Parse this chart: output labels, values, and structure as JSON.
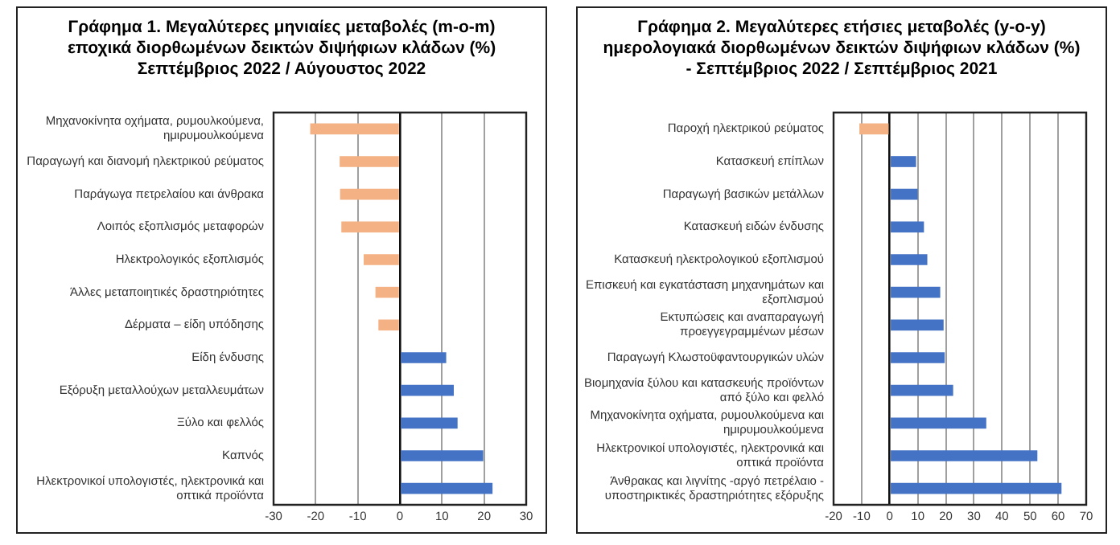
{
  "chart_data": [
    {
      "type": "bar",
      "orientation": "horizontal",
      "title": "Γράφημα 1. Μεγαλύτερες μηνιαίες μεταβολές (m-o-m) εποχικά διορθωμένων δεικτών διψήφιων κλάδων (%) Σεπτέμβριος 2022 / Αύγουστος 2022",
      "categories": [
        "Μηχανοκίνητα οχήματα, ρυμουλκούμενα, ημιρυμουλκούμενα",
        "Παραγωγή και διανομή ηλεκτρικού ρεύματος",
        "Παράγωγα πετρελαίου και άνθρακα",
        "Λοιπός εξοπλισμός μεταφορών",
        "Ηλεκτρολογικός εξοπλισμός",
        "Άλλες μεταποιητικές δραστηριότητες",
        "Δέρματα – είδη υπόδησης",
        "Είδη ένδυσης",
        "Εξόρυξη μεταλλούχων μεταλλευμάτων",
        "Ξύλο και φελλός",
        "Καπνός",
        "Ηλεκτρονικοί υπολογιστές, ηλεκτρονικά και οπτικά προϊόντα"
      ],
      "values": [
        -21.3,
        -14.3,
        -14.2,
        -13.9,
        -8.6,
        -5.8,
        -5.1,
        11.0,
        12.8,
        13.7,
        19.8,
        22.0
      ],
      "colors": [
        "#f4b183",
        "#f4b183",
        "#f4b183",
        "#f4b183",
        "#f4b183",
        "#f4b183",
        "#f4b183",
        "#4472c4",
        "#4472c4",
        "#4472c4",
        "#4472c4",
        "#4472c4"
      ],
      "xlim": [
        -30,
        30
      ],
      "xticks": [
        -30,
        -20,
        -10,
        0,
        10,
        20,
        30
      ],
      "grid": "x"
    },
    {
      "type": "bar",
      "orientation": "horizontal",
      "title": "Γράφημα 2. Μεγαλύτερες ετήσιες μεταβολές (y-o-y) ημερολογιακά διορθωμένων δεικτών διψήφιων κλάδων (%) - Σεπτέμβριος 2022 / Σεπτέμβριος 2021",
      "categories": [
        "Παροχή ηλεκτρικού ρεύματος",
        "Κατασκευή επίπλων",
        "Παραγωγή βασικών μετάλλων",
        "Κατασκευή ειδών ένδυσης",
        "Κατασκευή ηλεκτρολογικού εξοπλισμού",
        "Επισκευή και εγκατάσταση μηχανημάτων και εξοπλισμού",
        "Εκτυπώσεις και αναπαραγωγή προεγγεγραμμένων μέσων",
        "Παραγωγή Κλωστοϋφαντουργικών υλών",
        "Βιομηχανία ξύλου και κατασκευής προϊόντων από ξύλο και φελλό",
        "Μηχανοκίνητα οχήματα, ρυμουλκούμενα και ημιρυμουλκούμενα",
        "Ηλεκτρονικοί υπολογιστές, ηλεκτρονικά και οπτικά προϊόντα",
        "Άνθρακας και λιγνίτης -αργό πετρέλαιο - υποστηρικτικές δραστηριότητες εξόρυξης"
      ],
      "values": [
        -10.8,
        9.4,
        10.0,
        12.2,
        13.4,
        18.0,
        19.2,
        19.6,
        22.6,
        34.4,
        52.6,
        61.2
      ],
      "colors": [
        "#f4b183",
        "#4472c4",
        "#4472c4",
        "#4472c4",
        "#4472c4",
        "#4472c4",
        "#4472c4",
        "#4472c4",
        "#4472c4",
        "#4472c4",
        "#4472c4",
        "#4472c4"
      ],
      "xlim": [
        -20,
        70
      ],
      "xticks": [
        -20,
        -10,
        0,
        10,
        20,
        30,
        40,
        50,
        60,
        70
      ],
      "grid": "x"
    }
  ]
}
